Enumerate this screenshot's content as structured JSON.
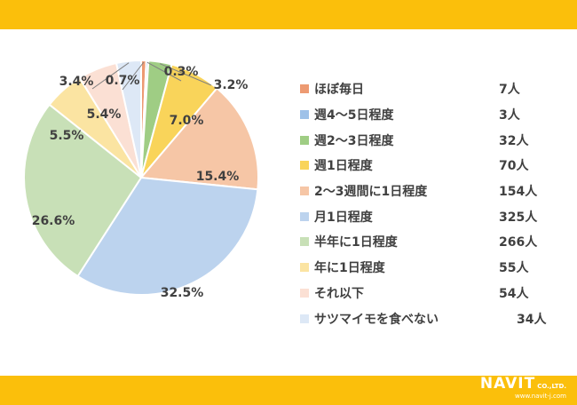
{
  "brand": {
    "name": "NAVIT",
    "suffix": "CO.,LTD.",
    "url": "www.navit-j.com"
  },
  "chart_data": {
    "type": "pie",
    "categories": [
      "ほぼ毎日",
      "週4～5日程度",
      "週2～3日程度",
      "週1日程度",
      "2～3週間に1日程度",
      "月1日程度",
      "半年に1日程度",
      "年に1日程度",
      "それ以下",
      "サツマイモを食べない"
    ],
    "values": [
      7,
      3,
      32,
      70,
      154,
      325,
      266,
      55,
      54,
      34
    ],
    "counts": [
      "7人",
      "3人",
      "32人",
      "70人",
      "154人",
      "325人",
      "266人",
      "55人",
      "54人",
      "34人"
    ],
    "percent_labels": [
      "0.7%",
      "0.3%",
      "3.2%",
      "7.0%",
      "15.4%",
      "32.5%",
      "26.6%",
      "5.5%",
      "5.4%",
      "3.4%"
    ],
    "colors": [
      "#ed9a72",
      "#9ec1e8",
      "#9fcd84",
      "#f9d45a",
      "#f6c6a6",
      "#bcd3ee",
      "#c8e0b7",
      "#fbe4a2",
      "#fbe0d4",
      "#dde8f6"
    ],
    "legend_position": "right"
  }
}
